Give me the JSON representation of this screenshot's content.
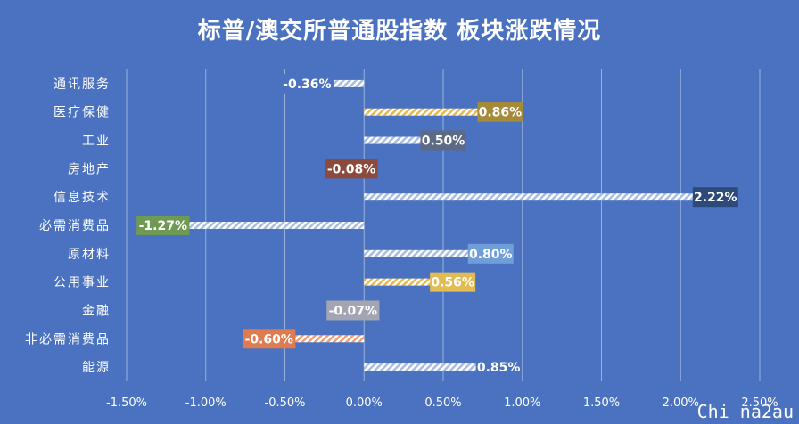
{
  "chart_data": {
    "type": "bar",
    "orientation": "horizontal",
    "title": "标普/澳交所普通股指数 板块涨跌情况",
    "xlabel": "",
    "ylabel": "",
    "xlim": [
      -0.015,
      0.025
    ],
    "xticks": [
      -0.015,
      -0.01,
      -0.005,
      0,
      0.005,
      0.01,
      0.015,
      0.02,
      0.025
    ],
    "xtick_labels": [
      "-1.50%",
      "-1.00%",
      "-0.50%",
      "0.00%",
      "0.50%",
      "1.00%",
      "1.50%",
      "2.00%",
      "2.50%"
    ],
    "grid": true,
    "legend": "none",
    "categories": [
      "通讯服务",
      "医疗保健",
      "工业",
      "房地产",
      "信息技术",
      "必需消费品",
      "原材料",
      "公用事业",
      "金融",
      "非必需消费品",
      "能源"
    ],
    "values": [
      -0.0036,
      0.0086,
      0.005,
      -0.0008,
      0.0222,
      -0.0127,
      0.008,
      0.0056,
      -0.0007,
      -0.006,
      0.0085
    ],
    "data_labels": [
      "-0.36%",
      "0.86%",
      "0.50%",
      "-0.08%",
      "2.22%",
      "-1.27%",
      "0.80%",
      "0.56%",
      "-0.07%",
      "-0.60%",
      "0.85%"
    ],
    "label_colors": [
      "#4a72c0",
      "#a58a3c",
      "#5d6a85",
      "#8c4a3c",
      "#2e4a7a",
      "#6f9a54",
      "#6f9ed8",
      "#e2bb53",
      "#a3a6b2",
      "#e07b50",
      "#4a72c0"
    ],
    "bar_accent_colors": [
      "#ffffff",
      "#e8b84a",
      "#ffffff",
      "#f0a070",
      "#ffffff",
      "#ffffff",
      "#ffffff",
      "#e8b84a",
      "#ffffff",
      "#f0a070",
      "#ffffff"
    ]
  },
  "watermark": "Chi na2au"
}
